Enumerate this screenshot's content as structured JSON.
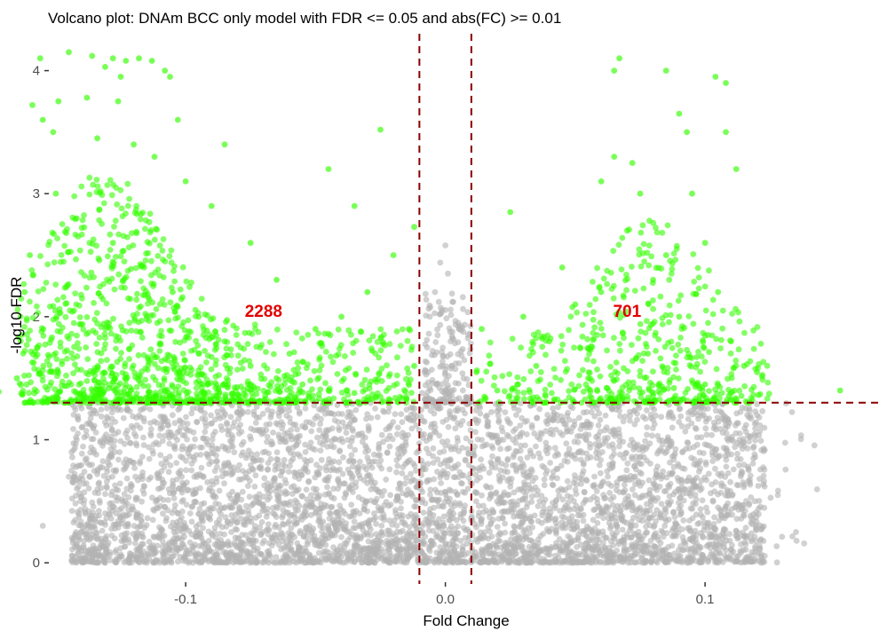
{
  "chart_data": {
    "type": "scatter",
    "title": "Volcano plot: DNAm BCC only model with FDR <= 0.05 and abs(FC) >= 0.01",
    "xlabel": "Fold Change",
    "ylabel": "-log10 FDR",
    "xlim": [
      -0.152,
      0.168
    ],
    "ylim": [
      -0.1,
      4.3
    ],
    "x_ticks": [
      {
        "value": -0.1,
        "label": "-0.1"
      },
      {
        "value": 0.0,
        "label": "0.0"
      },
      {
        "value": 0.1,
        "label": "0.1"
      }
    ],
    "y_ticks": [
      {
        "value": 0,
        "label": "0"
      },
      {
        "value": 1,
        "label": "1"
      },
      {
        "value": 2,
        "label": "2"
      },
      {
        "value": 3,
        "label": "3"
      },
      {
        "value": 4,
        "label": "4"
      }
    ],
    "grid": false,
    "legend": "none",
    "thresholds": {
      "fold_change": [
        -0.01,
        0.01
      ],
      "neg_log10_fdr": 1.301
    },
    "annotations": [
      {
        "text": "2288",
        "x": -0.07,
        "y": 2.05
      },
      {
        "text": "701",
        "x": 0.07,
        "y": 2.05
      }
    ],
    "series": [
      {
        "key": "not_significant",
        "color": "#b3b3b3",
        "opacity": 0.6,
        "points": [
          [
            0.0,
            2.58
          ],
          [
            -0.002,
            2.44
          ],
          [
            0.001,
            2.35
          ],
          [
            -0.004,
            2.2
          ],
          [
            0.003,
            2.12
          ],
          [
            -0.006,
            2.0
          ],
          [
            0.005,
            1.95
          ],
          [
            -0.003,
            1.85
          ],
          [
            0.002,
            1.8
          ],
          [
            -0.007,
            1.75
          ],
          [
            0.006,
            1.72
          ],
          [
            -0.001,
            1.68
          ],
          [
            0.004,
            1.62
          ],
          [
            -0.008,
            1.55
          ],
          [
            0.007,
            1.5
          ],
          [
            -0.005,
            1.46
          ],
          [
            0.001,
            1.42
          ],
          [
            -0.009,
            1.38
          ],
          [
            0.008,
            1.35
          ],
          [
            -0.002,
            1.33
          ],
          [
            -0.155,
            0.3
          ],
          [
            0.135,
            0.25
          ],
          [
            0.128,
            0.55
          ],
          [
            -0.145,
            0.7
          ],
          [
            0.115,
            0.95
          ],
          [
            -0.14,
            1.1
          ],
          [
            0.12,
            1.2
          ],
          [
            -0.132,
            0.95
          ],
          [
            0.105,
            0.45
          ]
        ]
      },
      {
        "key": "significant",
        "color": "#33ff00",
        "opacity": 0.65,
        "points": [
          [
            -0.156,
            4.1
          ],
          [
            -0.145,
            4.15
          ],
          [
            -0.136,
            4.12
          ],
          [
            -0.128,
            4.1
          ],
          [
            -0.123,
            4.08
          ],
          [
            -0.118,
            4.1
          ],
          [
            -0.113,
            4.08
          ],
          [
            -0.108,
            4.0
          ],
          [
            -0.131,
            4.03
          ],
          [
            -0.125,
            3.95
          ],
          [
            -0.106,
            3.95
          ],
          [
            -0.159,
            3.72
          ],
          [
            -0.149,
            3.75
          ],
          [
            -0.138,
            3.78
          ],
          [
            -0.155,
            3.6
          ],
          [
            -0.126,
            3.75
          ],
          [
            -0.103,
            3.6
          ],
          [
            -0.151,
            3.5
          ],
          [
            -0.134,
            3.45
          ],
          [
            -0.12,
            3.4
          ],
          [
            -0.085,
            3.4
          ],
          [
            -0.045,
            3.2
          ],
          [
            -0.025,
            3.52
          ],
          [
            -0.035,
            2.9
          ],
          [
            -0.012,
            2.73
          ],
          [
            -0.02,
            2.5
          ],
          [
            -0.03,
            2.2
          ],
          [
            -0.04,
            2.0
          ],
          [
            -0.05,
            1.9
          ],
          [
            -0.06,
            1.7
          ],
          [
            -0.065,
            2.3
          ],
          [
            -0.075,
            2.6
          ],
          [
            -0.09,
            2.9
          ],
          [
            -0.1,
            3.1
          ],
          [
            -0.112,
            3.3
          ],
          [
            -0.15,
            3.0
          ],
          [
            -0.16,
            2.5
          ],
          [
            -0.162,
            2.2
          ],
          [
            -0.165,
            1.5
          ],
          [
            -0.172,
            1.39
          ],
          [
            -0.142,
            2.8
          ],
          [
            -0.128,
            2.6
          ],
          [
            -0.116,
            2.4
          ],
          [
            -0.105,
            2.2
          ],
          [
            -0.095,
            2.0
          ],
          [
            -0.085,
            1.8
          ],
          [
            -0.075,
            1.6
          ],
          [
            -0.065,
            1.5
          ],
          [
            -0.055,
            1.45
          ],
          [
            -0.045,
            1.4
          ],
          [
            -0.035,
            1.38
          ],
          [
            -0.025,
            1.35
          ],
          [
            -0.015,
            1.33
          ],
          [
            -0.012,
            1.6
          ],
          [
            -0.014,
            1.9
          ],
          [
            0.014,
            1.9
          ],
          [
            0.012,
            1.55
          ],
          [
            0.02,
            1.4
          ],
          [
            0.025,
            2.85
          ],
          [
            0.03,
            2.0
          ],
          [
            0.035,
            1.6
          ],
          [
            0.04,
            1.8
          ],
          [
            0.045,
            2.4
          ],
          [
            0.05,
            2.1
          ],
          [
            0.055,
            1.5
          ],
          [
            0.06,
            2.2
          ],
          [
            0.065,
            3.3
          ],
          [
            0.07,
            2.7
          ],
          [
            0.075,
            3.0
          ],
          [
            0.08,
            2.3
          ],
          [
            0.085,
            2.5
          ],
          [
            0.09,
            2.0
          ],
          [
            0.095,
            3.0
          ],
          [
            0.1,
            2.6
          ],
          [
            0.105,
            2.2
          ],
          [
            0.11,
            1.8
          ],
          [
            0.115,
            1.6
          ],
          [
            0.065,
            4.0
          ],
          [
            0.067,
            4.1
          ],
          [
            0.085,
            4.0
          ],
          [
            0.104,
            3.95
          ],
          [
            0.108,
            3.9
          ],
          [
            0.09,
            3.65
          ],
          [
            0.093,
            3.5
          ],
          [
            0.108,
            3.5
          ],
          [
            0.112,
            3.2
          ],
          [
            0.072,
            3.25
          ],
          [
            0.06,
            3.1
          ],
          [
            0.078,
            1.7
          ],
          [
            0.1,
            1.45
          ],
          [
            0.12,
            1.55
          ],
          [
            0.152,
            1.4
          ],
          [
            0.015,
            1.35
          ],
          [
            0.028,
            1.45
          ],
          [
            0.042,
            1.33
          ],
          [
            0.068,
            1.38
          ],
          [
            0.088,
            1.42
          ],
          [
            0.098,
            1.36
          ]
        ]
      }
    ]
  }
}
